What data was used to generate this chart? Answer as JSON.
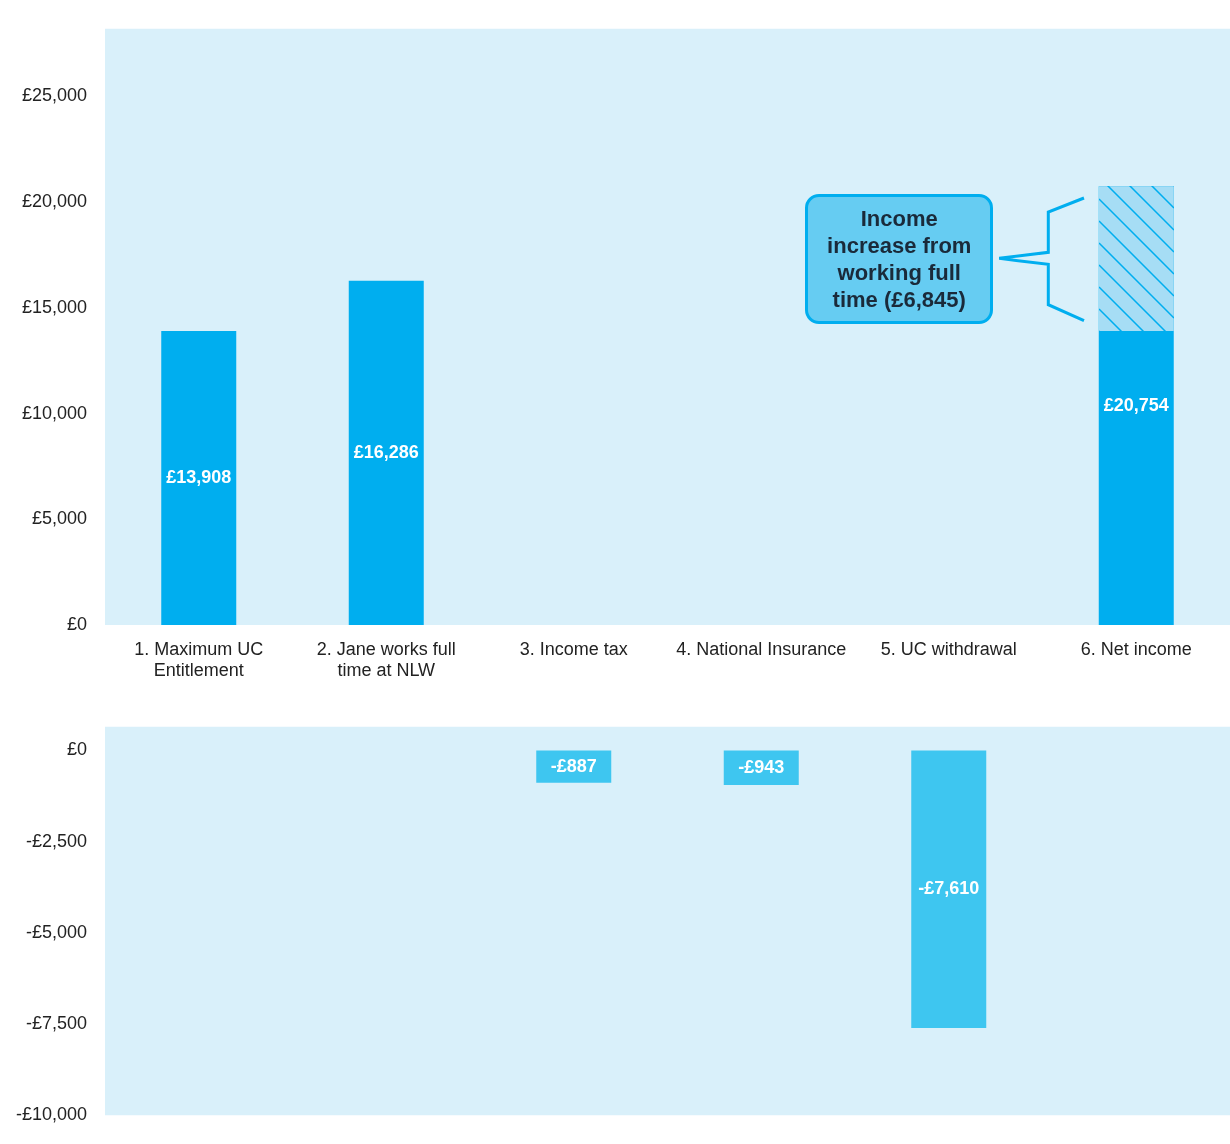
{
  "chart_data": [
    {
      "type": "bar",
      "categories": [
        "1. Maximum UC Entitlement",
        "2. Jane works full time at NLW",
        "3. Income tax",
        "4. National Insurance",
        "5. UC withdrawal",
        "6. Net income"
      ],
      "series": [
        {
          "color": "#00aeef",
          "values": [
            13908,
            16286,
            null,
            null,
            null,
            20754
          ],
          "value_labels": [
            "£13,908",
            "£16,286",
            null,
            null,
            null,
            "£20,754"
          ]
        },
        {
          "color": "#a6ddf5",
          "values": [
            null,
            null,
            null,
            null,
            null,
            6845
          ],
          "base": [
            null,
            null,
            null,
            null,
            null,
            13909
          ]
        }
      ],
      "ylim": [
        0,
        28200
      ],
      "yticks": [
        {
          "value": 0,
          "label": "£0"
        },
        {
          "value": 5000,
          "label": "£5,000"
        },
        {
          "value": 10000,
          "label": "£10,000"
        },
        {
          "value": 15000,
          "label": "£15,000"
        },
        {
          "value": 20000,
          "label": "£20,000"
        },
        {
          "value": 25000,
          "label": "£25,000"
        }
      ],
      "annotations": [
        "Income increase from working full time (£6,845)"
      ],
      "legend": false,
      "grid": false
    },
    {
      "type": "bar",
      "categories": [
        null,
        null,
        null,
        null,
        null,
        null
      ],
      "series": [
        {
          "color": "#3ec6f0",
          "values": [
            null,
            null,
            -887,
            -943,
            -7610,
            null
          ],
          "value_labels": [
            null,
            null,
            "-£887",
            "-£943",
            "-£7,610",
            null
          ]
        }
      ],
      "ylim": [
        -10000,
        650
      ],
      "yticks": [
        {
          "value": 0,
          "label": "£0"
        },
        {
          "value": -2500,
          "label": "-£2,500"
        },
        {
          "value": -5000,
          "label": "-£5,000"
        },
        {
          "value": -7500,
          "label": "-£7,500"
        },
        {
          "value": -10000,
          "label": "-£10,000"
        }
      ],
      "tick_labels": "y",
      "legend": false,
      "grid": false
    }
  ]
}
